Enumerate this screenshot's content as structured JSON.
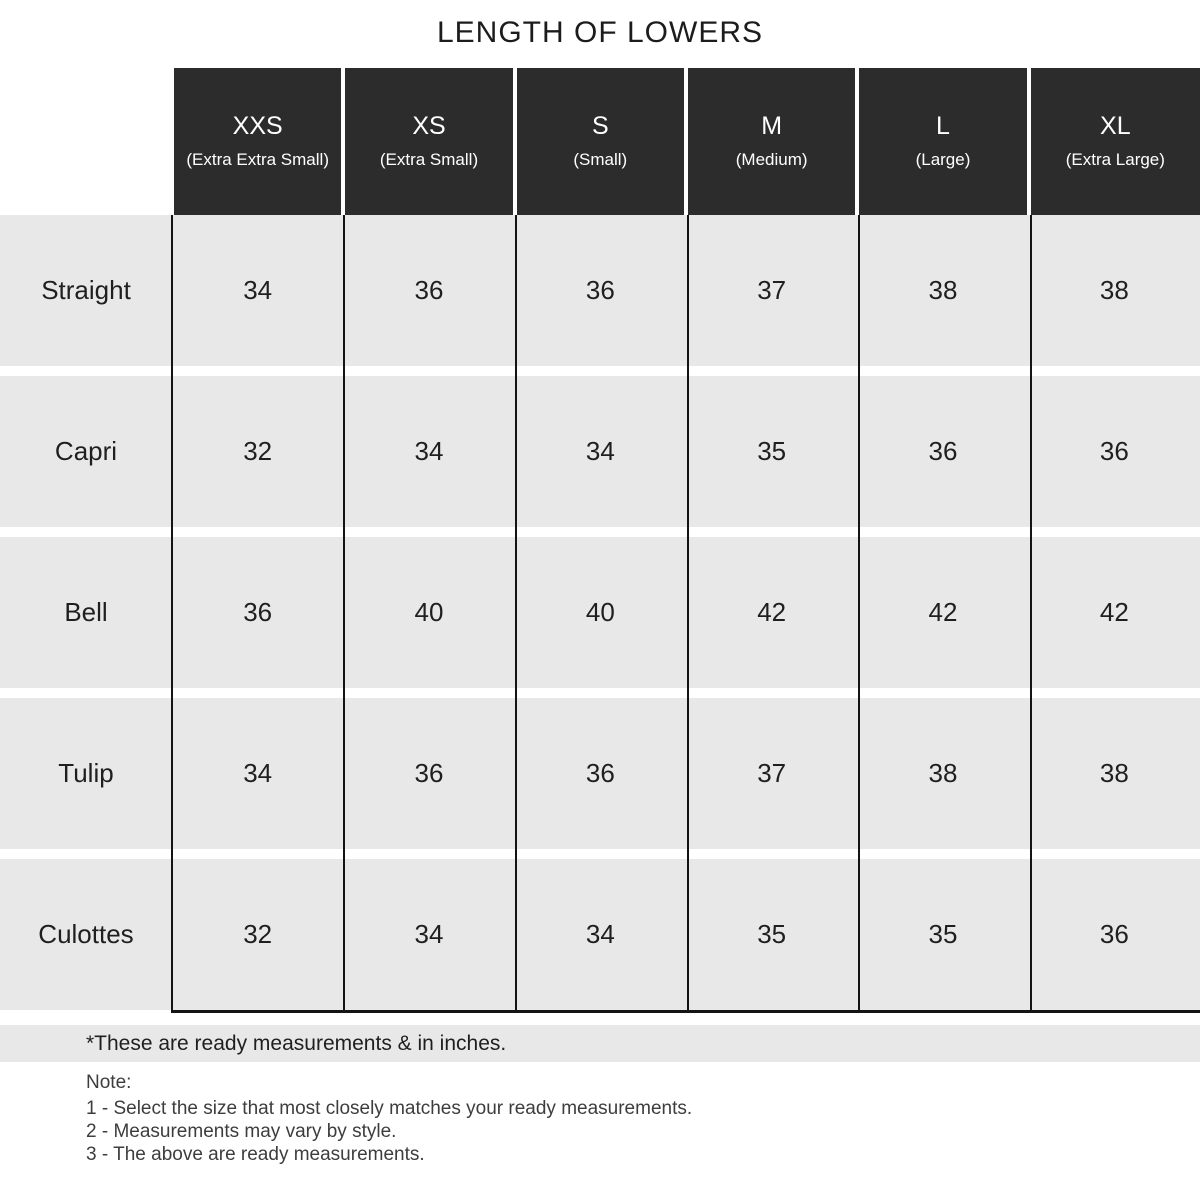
{
  "title": "LENGTH OF LOWERS",
  "chart_data": {
    "type": "table",
    "title": "LENGTH OF LOWERS",
    "unit": "inches",
    "columns": [
      {
        "size": "XXS",
        "sub": "(Extra Extra Small)"
      },
      {
        "size": "XS",
        "sub": "(Extra Small)"
      },
      {
        "size": "S",
        "sub": "(Small)"
      },
      {
        "size": "M",
        "sub": "(Medium)"
      },
      {
        "size": "L",
        "sub": "(Large)"
      },
      {
        "size": "XL",
        "sub": "(Extra Large)"
      }
    ],
    "rows": [
      {
        "label": "Straight",
        "values": [
          34,
          36,
          36,
          37,
          38,
          38
        ]
      },
      {
        "label": "Capri",
        "values": [
          32,
          34,
          34,
          35,
          36,
          36
        ]
      },
      {
        "label": "Bell",
        "values": [
          36,
          40,
          40,
          42,
          42,
          42
        ]
      },
      {
        "label": "Tulip",
        "values": [
          34,
          36,
          36,
          37,
          38,
          38
        ]
      },
      {
        "label": "Culottes",
        "values": [
          32,
          34,
          34,
          35,
          35,
          36
        ]
      }
    ]
  },
  "footnote": "*These are ready measurements & in inches.",
  "note": {
    "heading": "Note:",
    "items": [
      "1 - Select the size that most closely matches your ready measurements.",
      "2 - Measurements may vary by style.",
      "3 - The above are ready measurements."
    ]
  },
  "colors": {
    "header_bg": "#2d2c2c",
    "header_text": "#ffffff",
    "row_bg": "#e9e8e8",
    "border": "#141414",
    "text": "#1f1f1f"
  }
}
